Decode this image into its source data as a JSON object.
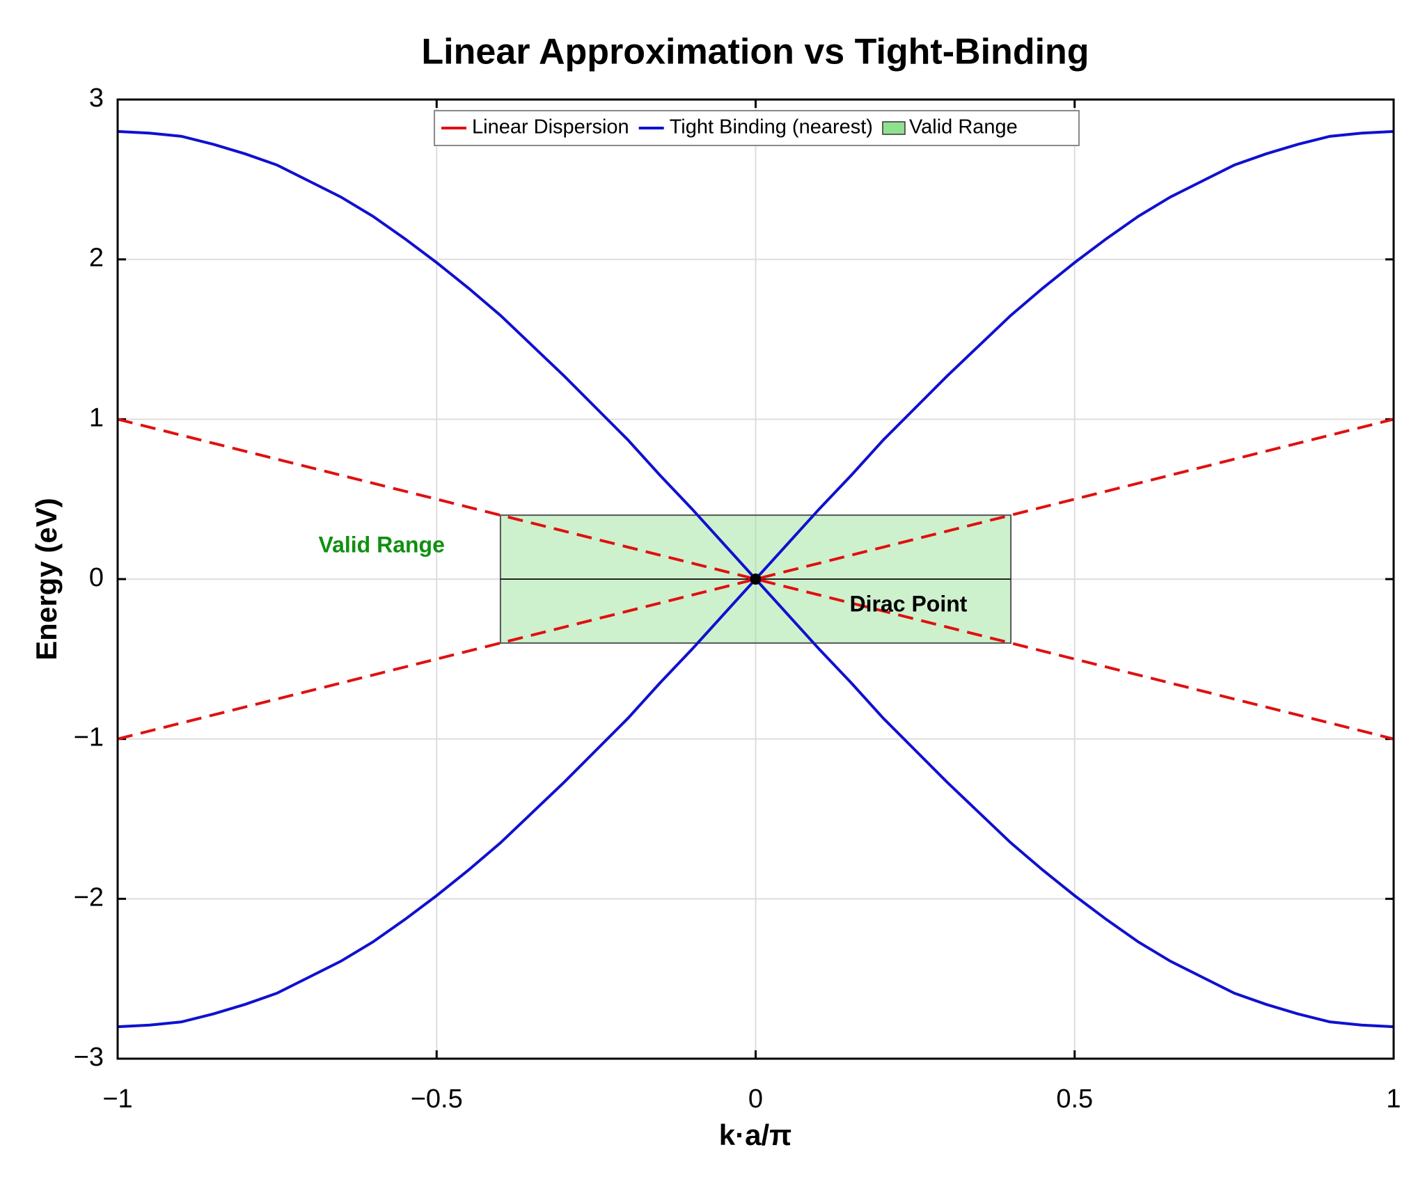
{
  "chart_data": {
    "type": "line",
    "title": "Linear Approximation vs Tight-Binding",
    "xlabel": "k·a/π",
    "ylabel": "Energy (eV)",
    "xlim": [
      -1,
      1
    ],
    "ylim": [
      -3,
      3
    ],
    "xticks": [
      {
        "value": -1,
        "label": "−1"
      },
      {
        "value": -0.5,
        "label": "−0.5"
      },
      0,
      0.5,
      1
    ],
    "yticks": [
      {
        "value": -3,
        "label": "−3"
      },
      {
        "value": -2,
        "label": "−2"
      },
      {
        "value": -1,
        "label": "−1"
      },
      0,
      1,
      2,
      3
    ],
    "grid": true,
    "legend": "top",
    "series": [
      {
        "name": "Linear Dispersion",
        "color": "#e01010",
        "dashed": true,
        "x": [
          -1,
          1
        ],
        "branches": [
          [
            1,
            -1
          ],
          [
            -1,
            1
          ]
        ]
      },
      {
        "name": "Tight Binding (nearest)",
        "color": "#1010d0",
        "dashed": false,
        "x": [
          -1,
          -0.95,
          -0.9,
          -0.85,
          -0.8,
          -0.75,
          -0.7,
          -0.65,
          -0.6,
          -0.55,
          -0.5,
          -0.45,
          -0.4,
          -0.35,
          -0.3,
          -0.25,
          -0.2,
          -0.15,
          -0.1,
          -0.05,
          0,
          0.05,
          0.1,
          0.15,
          0.2,
          0.25,
          0.3,
          0.35,
          0.4,
          0.45,
          0.5,
          0.55,
          0.6,
          0.65,
          0.7,
          0.75,
          0.8,
          0.85,
          0.9,
          0.95,
          1
        ],
        "branches": [
          [
            2.8,
            2.79,
            2.77,
            2.72,
            2.66,
            2.59,
            2.49,
            2.39,
            2.27,
            2.13,
            1.98,
            1.82,
            1.65,
            1.46,
            1.27,
            1.07,
            0.87,
            0.65,
            0.44,
            0.22,
            0,
            -0.22,
            -0.44,
            -0.65,
            -0.87,
            -1.07,
            -1.27,
            -1.46,
            -1.65,
            -1.82,
            -1.98,
            -2.13,
            -2.27,
            -2.39,
            -2.49,
            -2.59,
            -2.66,
            -2.72,
            -2.77,
            -2.79,
            -2.8
          ],
          [
            -2.8,
            -2.79,
            -2.77,
            -2.72,
            -2.66,
            -2.59,
            -2.49,
            -2.39,
            -2.27,
            -2.13,
            -1.98,
            -1.82,
            -1.65,
            -1.46,
            -1.27,
            -1.07,
            -0.87,
            -0.65,
            -0.44,
            -0.22,
            0,
            0.22,
            0.44,
            0.65,
            0.87,
            1.07,
            1.27,
            1.46,
            1.65,
            1.82,
            1.98,
            2.13,
            2.27,
            2.39,
            2.49,
            2.59,
            2.66,
            2.72,
            2.77,
            2.79,
            2.8
          ]
        ]
      }
    ],
    "valid_range": {
      "name": "Valid Range",
      "color": "#90e090",
      "x": [
        -0.4,
        0.4
      ],
      "y": [
        -0.4,
        0.4
      ],
      "label": "Valid Range",
      "label_color": "#109010"
    },
    "dirac_point": {
      "label": "Dirac Point",
      "x": 0,
      "y": 0
    }
  }
}
